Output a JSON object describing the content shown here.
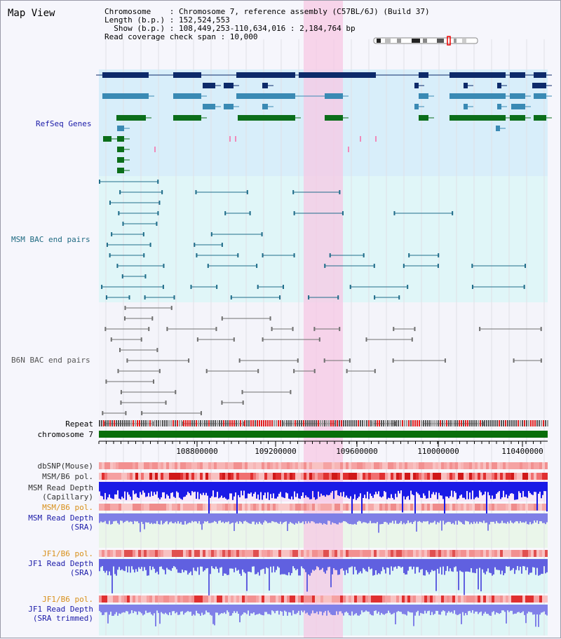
{
  "header": {
    "title": "Map View",
    "chromosome_line": "Chromosome    : Chromosome 7, reference assembly (C57BL/6J) (Build 37)",
    "length_line": "Length (b.p.) : 152,524,553",
    "show_line": "  Show (b.p.) : 108,449,253-110,634,016 : 2,184,764 bp",
    "coverage_line": "Read coverage check span : 10,000"
  },
  "tracks": {
    "refseq": "RefSeq Genes",
    "msm_bac": "MSM BAC end pairs",
    "b6n_bac": "B6N BAC end pairs",
    "repeat": "Repeat",
    "chromosome": "chromosome 7",
    "dbsnp": "dbSNP(Mouse)",
    "msm_b6_pol_1": "MSM/B6 pol.",
    "msm_read_depth_cap": "MSM Read Depth\n(Capillary)",
    "msm_b6_pol_2": "MSM/B6 pol.",
    "msm_read_depth_sra": "MSM Read Depth\n(SRA)",
    "jf1_b6_pol_1": "JF1/B6 pol.",
    "jf1_read_depth_sra": "JF1 Read Depth\n(SRA)",
    "jf1_b6_pol_2": "JF1/B6 pol.",
    "jf1_read_depth_trim": "JF1 Read Depth\n(SRA trimmed)"
  },
  "axis": {
    "ticks": [
      "108800000",
      "109200000",
      "109600000",
      "110000000",
      "110400000"
    ]
  },
  "colors": {
    "refseq_label": "#1a1aa8",
    "msm_label": "#1f6a82",
    "b6n_label": "#555555",
    "pol_label": "#d8901a",
    "depth_label": "#1a1aa8",
    "highlight": "#f7c8e4",
    "gene_dark": "#0d2a6a",
    "gene_mid": "#3a8ab4",
    "gene_green": "#0b6e1a",
    "bac_msm": "#206d8a",
    "bac_b6n": "#707070"
  }
}
